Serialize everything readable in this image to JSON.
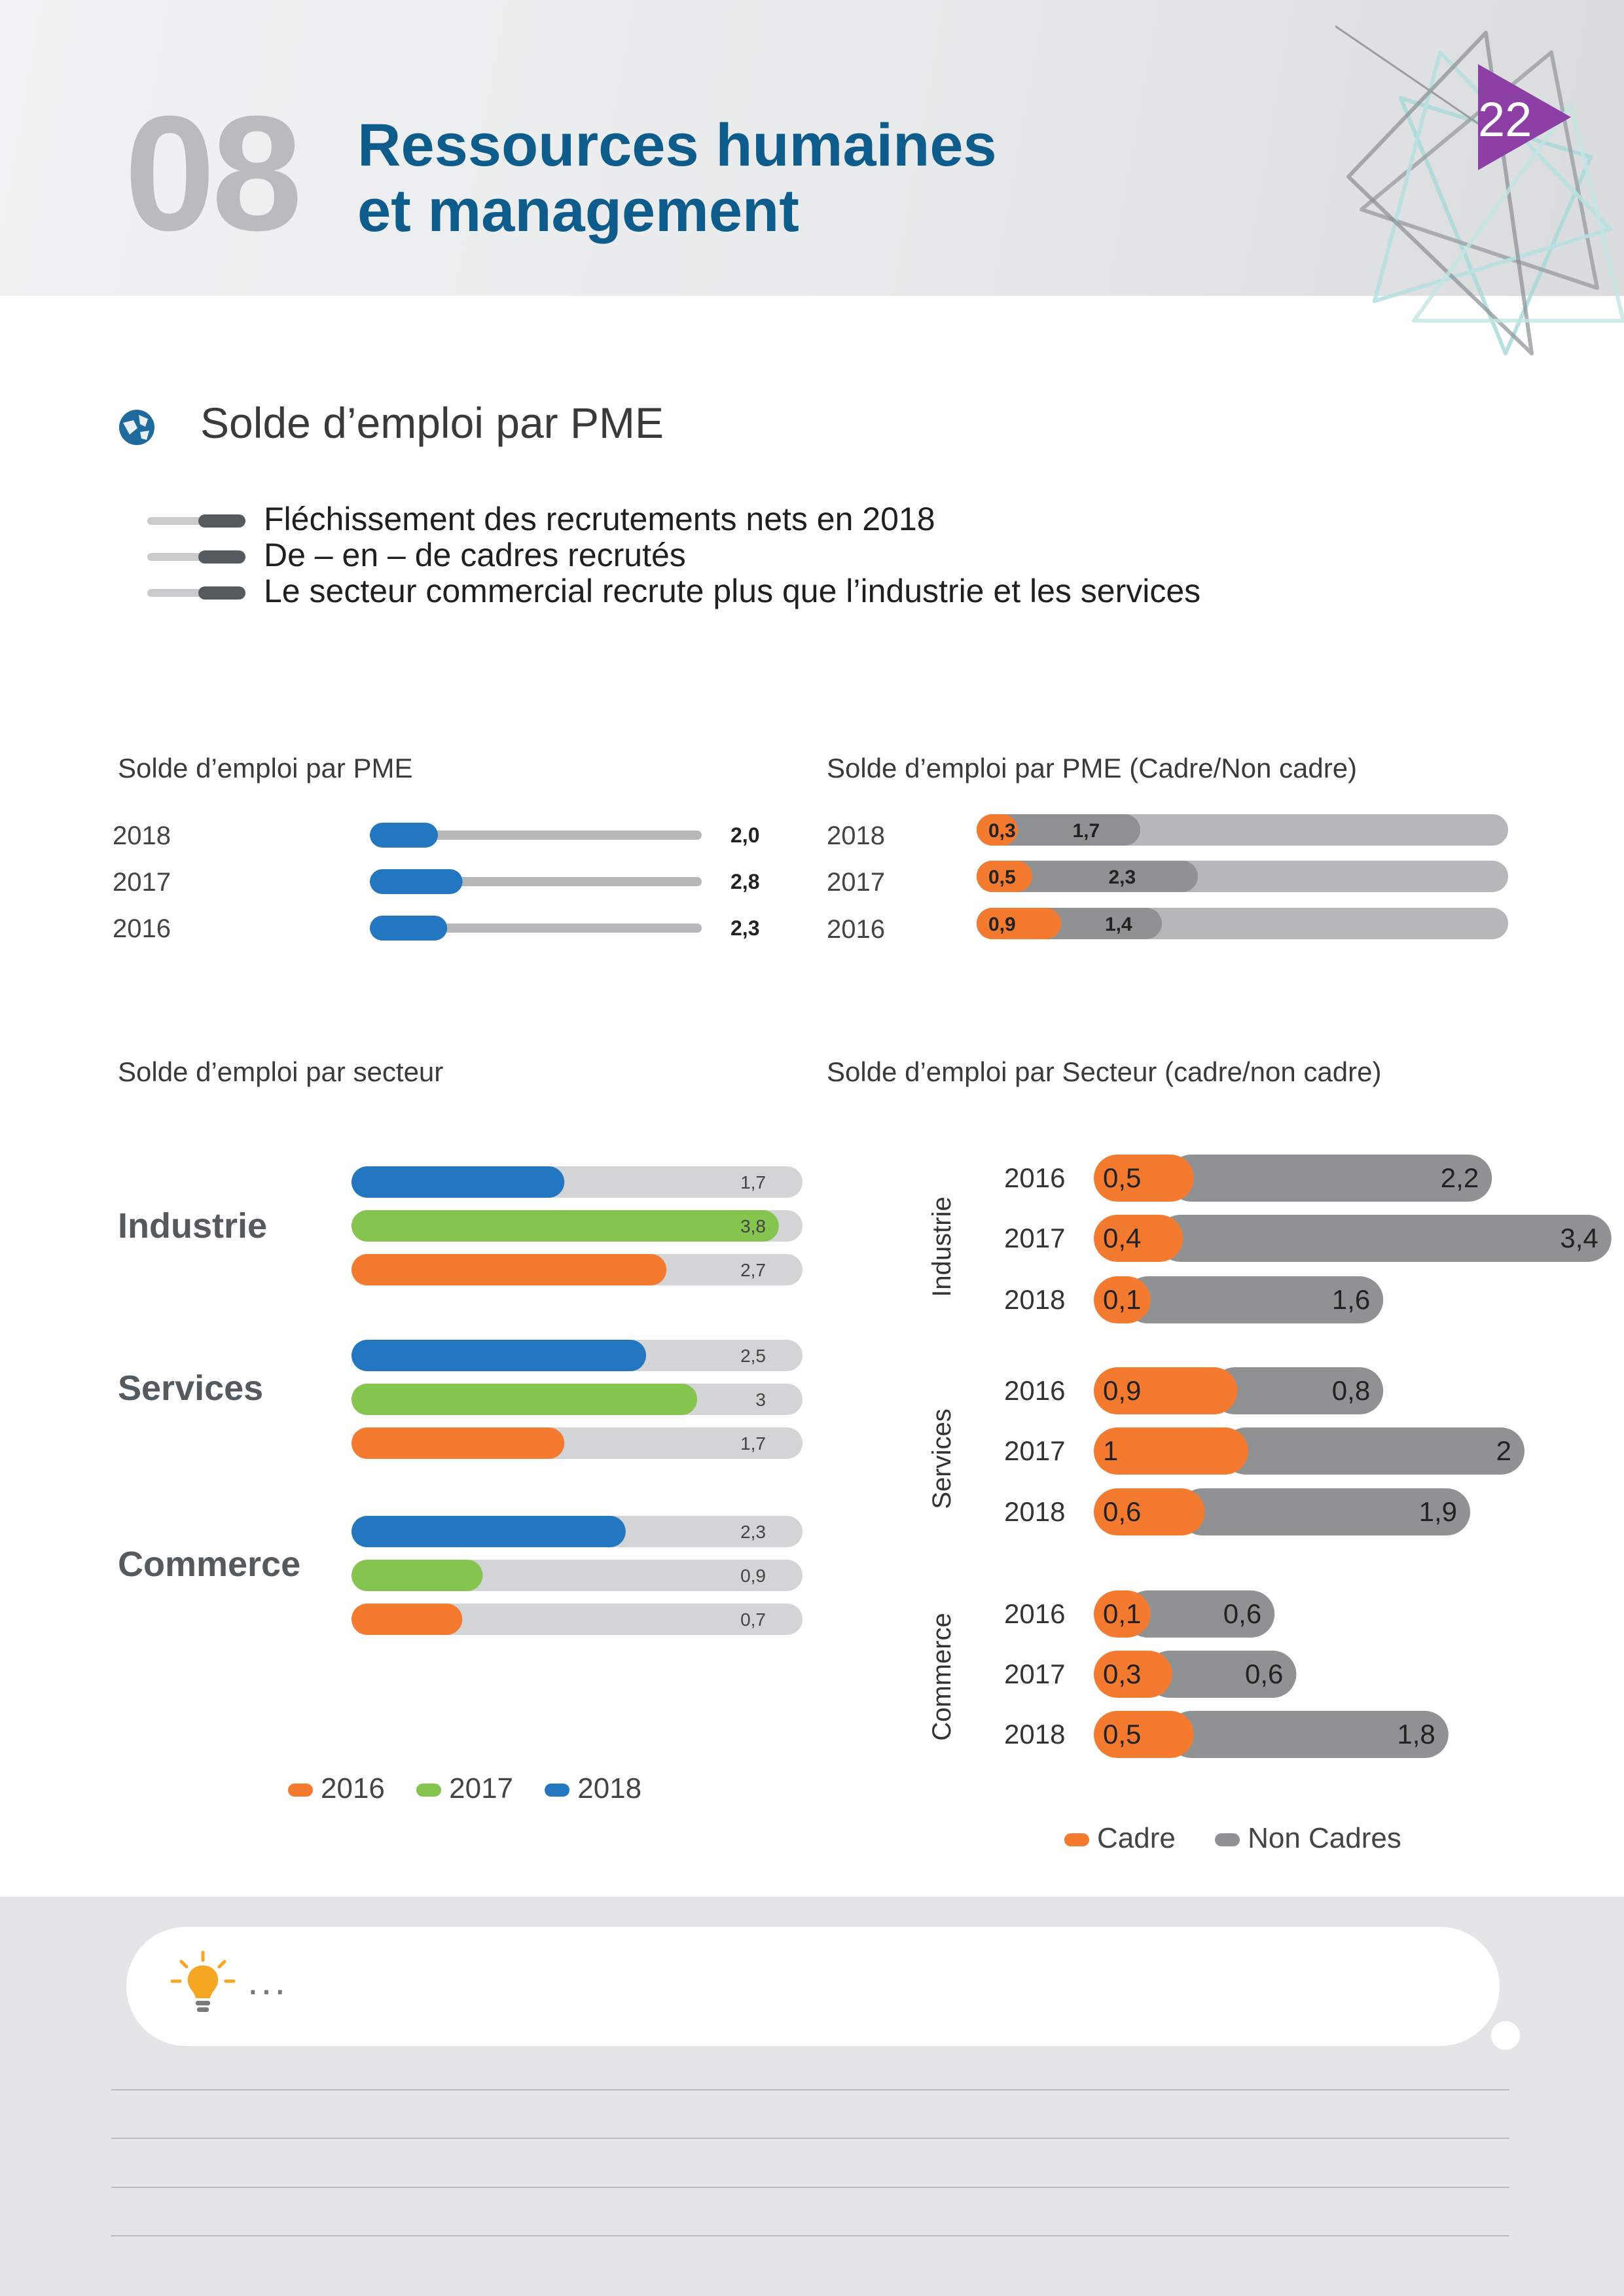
{
  "header": {
    "chapter_number": "08",
    "title_line1": "Ressources humaines",
    "title_line2": "et management",
    "page_number": "22"
  },
  "section": {
    "title": "Solde d’emploi par PME",
    "bullets": [
      "Fléchissement des recrutements nets en 2018",
      "De – en – de cadres recrutés",
      "Le secteur commercial recrute plus que l’industrie et les services"
    ]
  },
  "colors": {
    "blue": "#2277c0",
    "green": "#86c450",
    "orange": "#f47a30",
    "grey_bar": "#8f9193",
    "track": "#d2d4d6",
    "title_blue": "#0d5c8c"
  },
  "chart_data": [
    {
      "type": "bar",
      "orientation": "horizontal",
      "title": "Solde d’emploi par PME",
      "categories": [
        "2018",
        "2017",
        "2016"
      ],
      "values": [
        2.0,
        2.8,
        2.3
      ],
      "value_labels": [
        "2,0",
        "2,8",
        "2,3"
      ]
    },
    {
      "type": "bar",
      "orientation": "horizontal",
      "stacked": true,
      "title": "Solde d’emploi par PME (Cadre/Non cadre)",
      "categories": [
        "2018",
        "2017",
        "2016"
      ],
      "series": [
        {
          "values": [
            0.3,
            0.5,
            0.9
          ],
          "labels": [
            "0,3",
            "0,5",
            "0,9"
          ]
        },
        {
          "values": [
            1.7,
            2.3,
            1.4
          ],
          "labels": [
            "1,7",
            "2,3",
            "1,4"
          ]
        }
      ]
    },
    {
      "type": "bar",
      "orientation": "horizontal",
      "title": "Solde d’emploi par secteur",
      "groups": [
        "Industrie",
        "Services",
        "Commerce"
      ],
      "series": [
        {
          "name": "2018",
          "values": [
            1.7,
            2.5,
            2.3
          ],
          "labels": [
            "1,7",
            "2,5",
            "2,3"
          ]
        },
        {
          "name": "2017",
          "values": [
            3.8,
            3.0,
            0.9
          ],
          "labels": [
            "3,8",
            "3",
            "0,9"
          ]
        },
        {
          "name": "2016",
          "values": [
            2.7,
            1.7,
            0.7
          ],
          "labels": [
            "2,7",
            "1,7",
            "0,7"
          ]
        }
      ],
      "legend": [
        "2016",
        "2017",
        "2018"
      ],
      "legend_position": "bottom"
    },
    {
      "type": "bar",
      "orientation": "horizontal",
      "stacked": true,
      "title": "Solde d’emploi par Secteur (cadre/non cadre)",
      "groups": [
        {
          "name": "Industrie",
          "years": [
            "2016",
            "2017",
            "2018"
          ],
          "cadre": [
            0.5,
            0.4,
            0.1
          ],
          "non_cadres": [
            2.2,
            3.4,
            1.6
          ],
          "cadre_labels": [
            "0,5",
            "0,4",
            "0,1"
          ],
          "non_cadres_labels": [
            "2,2",
            "3,4",
            "1,6"
          ]
        },
        {
          "name": "Services",
          "years": [
            "2016",
            "2017",
            "2018"
          ],
          "cadre": [
            0.9,
            1,
            0.6
          ],
          "non_cadres": [
            0.8,
            2,
            1.9
          ],
          "cadre_labels": [
            "0,9",
            "1",
            "0,6"
          ],
          "non_cadres_labels": [
            "0,8",
            "2",
            "1,9"
          ]
        },
        {
          "name": "Commerce",
          "years": [
            "2016",
            "2017",
            "2018"
          ],
          "cadre": [
            0.1,
            0.3,
            0.5
          ],
          "non_cadres": [
            0.6,
            0.6,
            1.8
          ],
          "cadre_labels": [
            "0,1",
            "0,3",
            "0,5"
          ],
          "non_cadres_labels": [
            "0,6",
            "0,6",
            "1,8"
          ]
        }
      ],
      "legend": [
        "Cadre",
        "Non Cadres"
      ],
      "legend_position": "bottom"
    }
  ],
  "note": {
    "text": "..."
  }
}
